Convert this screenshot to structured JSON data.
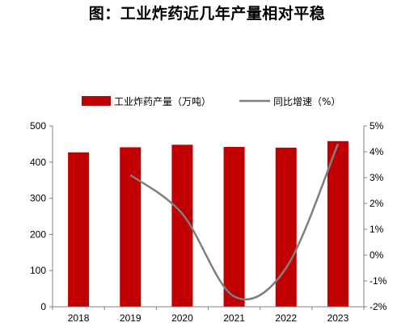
{
  "title": "图：工业炸药近几年产量相对平稳",
  "chart_data": {
    "type": "bar",
    "categories": [
      "2018",
      "2019",
      "2020",
      "2021",
      "2022",
      "2023"
    ],
    "series": [
      {
        "name": "工业炸药产量（万吨）",
        "type": "bar",
        "axis": "left",
        "values": [
          427,
          441,
          448,
          442,
          440,
          458
        ],
        "color": "#C00000"
      },
      {
        "name": "同比增速（%）",
        "type": "line",
        "axis": "right",
        "smooth": true,
        "values": [
          null,
          3.1,
          1.6,
          -1.6,
          -0.5,
          4.3
        ],
        "color": "#7F7F7F"
      }
    ],
    "y_left": {
      "ticks": [
        "0",
        "100",
        "200",
        "300",
        "400",
        "500"
      ],
      "ylim": [
        0,
        500
      ]
    },
    "y_right": {
      "ticks": [
        "-2%",
        "-1%",
        "0%",
        "1%",
        "2%",
        "3%",
        "4%",
        "5%"
      ],
      "ylim": [
        -2,
        5
      ]
    },
    "legend_position": "top",
    "grid": false
  }
}
